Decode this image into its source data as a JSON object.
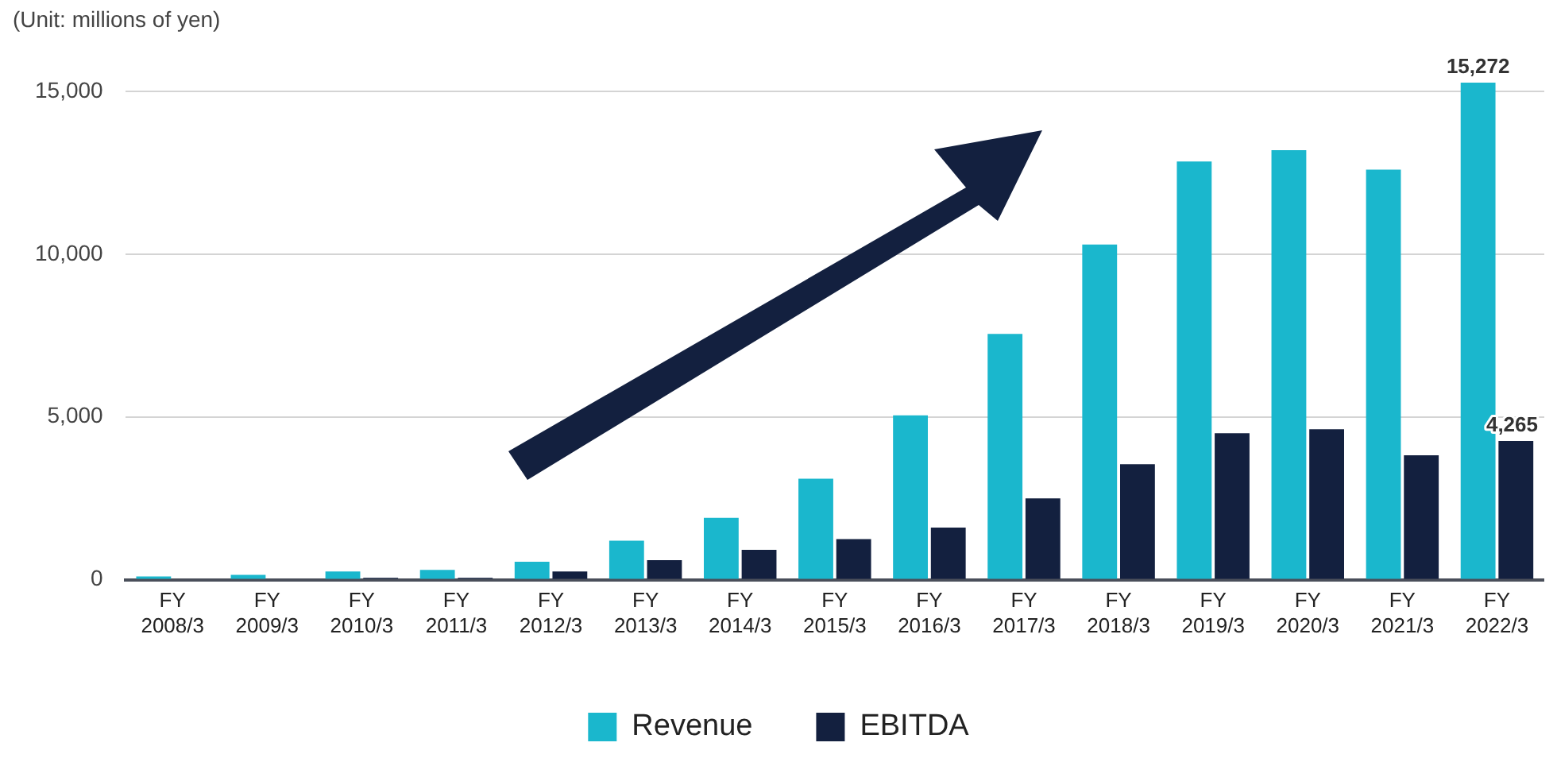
{
  "chart_data": {
    "type": "bar",
    "annotations": [
      "(Unit: millions of yen)"
    ],
    "categories": [
      "FY 2008/3",
      "FY 2009/3",
      "FY 2010/3",
      "FY 2011/3",
      "FY 2012/3",
      "FY 2013/3",
      "FY 2014/3",
      "FY 2015/3",
      "FY 2016/3",
      "FY 2017/3",
      "FY 2018/3",
      "FY 2019/3",
      "FY 2020/3",
      "FY 2021/3",
      "FY 2022/3"
    ],
    "series": [
      {
        "name": "Revenue",
        "color": "#1ab7cd",
        "values": [
          100,
          150,
          250,
          300,
          550,
          1200,
          1900,
          3100,
          5050,
          7550,
          10300,
          12850,
          13200,
          12600,
          15272
        ],
        "value_labels": [
          null,
          null,
          null,
          null,
          null,
          null,
          null,
          null,
          null,
          null,
          null,
          null,
          null,
          null,
          "15,272"
        ]
      },
      {
        "name": "EBITDA",
        "color": "#13203f",
        "values": [
          0,
          0,
          60,
          60,
          250,
          600,
          920,
          1250,
          1600,
          2500,
          3550,
          4500,
          4620,
          3820,
          4265
        ],
        "value_labels": [
          null,
          null,
          null,
          null,
          null,
          null,
          null,
          null,
          null,
          null,
          null,
          null,
          null,
          null,
          "4,265"
        ]
      }
    ],
    "ylim": [
      0,
      15272
    ],
    "yticks": [
      0,
      {
        "value": 5000,
        "label": "5,000"
      },
      {
        "value": 10000,
        "label": "10,000"
      },
      {
        "value": 15000,
        "label": "15,000"
      }
    ],
    "grid": "y",
    "legend": "bottom"
  }
}
